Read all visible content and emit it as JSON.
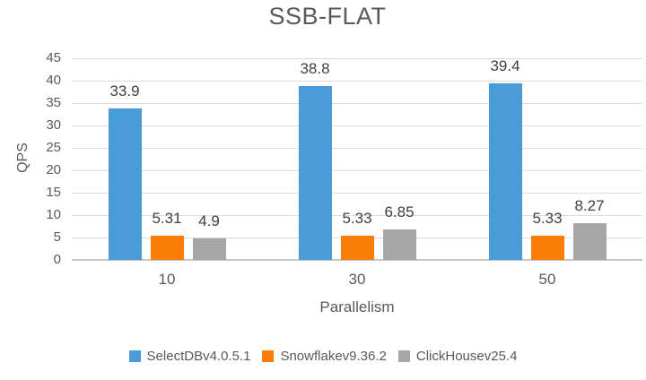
{
  "title": "SSB-FLAT",
  "colors": {
    "grid": "#dcdcdc",
    "axis": "#c6c6c6",
    "text": "#595959",
    "value_label": "#404040"
  },
  "chart_data": {
    "type": "bar",
    "title": "SSB-FLAT",
    "xlabel": "Parallelism",
    "ylabel": "QPS",
    "categories": [
      "10",
      "30",
      "50"
    ],
    "series": [
      {
        "name": "SelectDBv4.0.5.1",
        "color": "#4a9cd8",
        "values": [
          33.9,
          38.8,
          39.4
        ],
        "display_values": [
          "33.9",
          "38.8",
          "39.4"
        ]
      },
      {
        "name": "Snowflakev9.36.2",
        "color": "#fa7d0a",
        "values": [
          5.31,
          5.33,
          5.33
        ],
        "display_values": [
          "5.31",
          "5.33",
          "5.33"
        ]
      },
      {
        "name": "ClickHousev25.4",
        "color": "#a6a6a6",
        "values": [
          4.9,
          6.85,
          8.27
        ],
        "display_values": [
          "4.9",
          "6.85",
          "8.27"
        ]
      }
    ],
    "ylim": [
      0,
      45
    ],
    "yticks": [
      "45",
      "40",
      "35",
      "30",
      "25",
      "20",
      "15",
      "10",
      "5",
      "0"
    ],
    "grid": true,
    "legend_position": "bottom"
  }
}
